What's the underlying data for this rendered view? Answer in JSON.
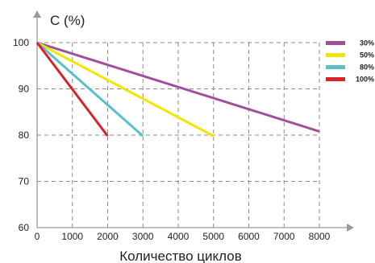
{
  "chart_data": {
    "type": "line",
    "title": "",
    "ylabel": "C (%)",
    "xlabel": "Количество циклов",
    "xlim": [
      0,
      8000
    ],
    "ylim": [
      60,
      100
    ],
    "x_ticks": [
      0,
      1000,
      2000,
      3000,
      4000,
      5000,
      6000,
      7000,
      8000
    ],
    "y_ticks": [
      60,
      70,
      80,
      90,
      100
    ],
    "x_tick_labels": [
      "0",
      "1000",
      "2000",
      "3000",
      "4000",
      "5000",
      "6000",
      "7000",
      "8000"
    ],
    "y_tick_labels": [
      "60",
      "70",
      "80",
      "90",
      "100"
    ],
    "grid": true,
    "legend_position": "top-right",
    "series": [
      {
        "name": "30%",
        "color": "#a0509a",
        "x": [
          0,
          8000
        ],
        "y": [
          100,
          80.8
        ]
      },
      {
        "name": "50%",
        "color": "#f2e600",
        "x": [
          0,
          5000
        ],
        "y": [
          100,
          79.8
        ]
      },
      {
        "name": "80%",
        "color": "#58c0c8",
        "x": [
          0,
          3000
        ],
        "y": [
          100,
          79.8
        ]
      },
      {
        "name": "100%",
        "color": "#d9232a",
        "x": [
          0,
          2000
        ],
        "y": [
          100,
          79.8
        ]
      }
    ]
  }
}
